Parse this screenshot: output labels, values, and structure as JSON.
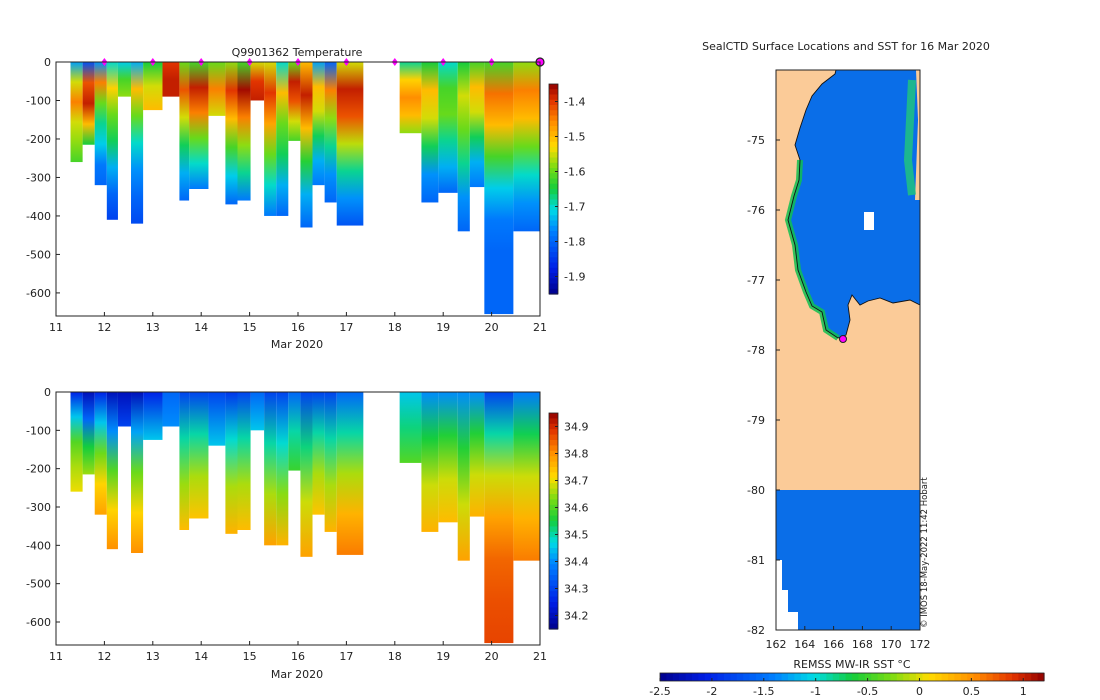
{
  "panel_top": {
    "title": "Q9901362  Temperature",
    "xlabel": "Mar 2020",
    "xticks": [
      "11",
      "12",
      "13",
      "14",
      "15",
      "16",
      "17",
      "18",
      "19",
      "20",
      "21"
    ],
    "yticks": [
      "0",
      "-100",
      "-200",
      "-300",
      "-400",
      "-500",
      "-600"
    ],
    "colorbar_ticks": [
      "-1.4",
      "-1.5",
      "-1.6",
      "-1.7",
      "-1.8",
      "-1.9"
    ]
  },
  "panel_bottom": {
    "title": "",
    "xlabel": "Mar 2020",
    "xticks": [
      "11",
      "12",
      "13",
      "14",
      "15",
      "16",
      "17",
      "18",
      "19",
      "20",
      "21"
    ],
    "yticks": [
      "0",
      "-100",
      "-200",
      "-300",
      "-400",
      "-500",
      "-600"
    ],
    "colorbar_ticks": [
      "34.9",
      "34.8",
      "34.7",
      "34.6",
      "34.5",
      "34.4",
      "34.3",
      "34.2"
    ]
  },
  "map": {
    "title": "SealCTD Surface Locations and SST for 16 Mar 2020",
    "xticks": [
      "162",
      "164",
      "166",
      "168",
      "170",
      "172"
    ],
    "yticks": [
      "-75",
      "-76",
      "-77",
      "-78",
      "-79",
      "-80",
      "-81",
      "-82"
    ],
    "colorbar_label": "REMSS MW-IR SST °C",
    "colorbar_ticks": [
      "-2.5",
      "-2",
      "-1.5",
      "-1",
      "-0.5",
      "0",
      "0.5",
      "1"
    ],
    "credit": "© IMOS 18-May-2022 11:42 Hobart"
  },
  "colors": {
    "ocean": "#0a6ee8",
    "land": "#fbcb98",
    "marker": "#ff00ff"
  },
  "chart_data": [
    {
      "type": "heatmap",
      "title": "Q9901362  Temperature",
      "xlabel": "Mar 2020",
      "ylabel": "",
      "xlim": [
        11,
        21
      ],
      "ylim": [
        -660,
        0
      ],
      "clim": [
        -1.95,
        -1.35
      ],
      "surface_markers_x": [
        12,
        13,
        14,
        15,
        16,
        17,
        18,
        19,
        20,
        21
      ],
      "profiles": [
        {
          "x0": 11.3,
          "x1": 11.55,
          "depth": -260,
          "temps": [
            -1.75,
            -1.55,
            -1.45,
            -1.55,
            -1.58,
            -1.62
          ]
        },
        {
          "x0": 11.55,
          "x1": 11.8,
          "depth": -215,
          "temps": [
            -1.82,
            -1.42,
            -1.38,
            -1.5,
            -1.65
          ]
        },
        {
          "x0": 11.8,
          "x1": 12.05,
          "depth": -320,
          "temps": [
            -1.76,
            -1.45,
            -1.6,
            -1.68,
            -1.72,
            -1.78,
            -1.8
          ]
        },
        {
          "x0": 12.05,
          "x1": 12.28,
          "depth": -410,
          "temps": [
            -1.7,
            -1.52,
            -1.6,
            -1.66,
            -1.74,
            -1.8,
            -1.84
          ]
        },
        {
          "x0": 12.28,
          "x1": 12.55,
          "depth": -90,
          "temps": [
            -1.72,
            -1.62,
            -1.58
          ]
        },
        {
          "x0": 12.55,
          "x1": 12.8,
          "depth": -420,
          "temps": [
            -1.74,
            -1.5,
            -1.6,
            -1.7,
            -1.76,
            -1.8,
            -1.83
          ]
        },
        {
          "x0": 12.8,
          "x1": 13.2,
          "depth": -125,
          "temps": [
            -1.65,
            -1.55,
            -1.5
          ]
        },
        {
          "x0": 13.2,
          "x1": 13.55,
          "depth": -90,
          "temps": [
            -1.4,
            -1.38,
            -1.38
          ]
        },
        {
          "x0": 13.55,
          "x1": 13.75,
          "depth": -360,
          "temps": [
            -1.6,
            -1.42,
            -1.55,
            -1.66,
            -1.74,
            -1.8
          ]
        },
        {
          "x0": 13.75,
          "x1": 14.15,
          "depth": -330,
          "temps": [
            -1.62,
            -1.38,
            -1.45,
            -1.6,
            -1.7,
            -1.78
          ]
        },
        {
          "x0": 14.15,
          "x1": 14.5,
          "depth": -140,
          "temps": [
            -1.6,
            -1.45,
            -1.55
          ]
        },
        {
          "x0": 14.5,
          "x1": 14.75,
          "depth": -370,
          "temps": [
            -1.58,
            -1.4,
            -1.5,
            -1.62,
            -1.72,
            -1.8
          ]
        },
        {
          "x0": 14.75,
          "x1": 15.02,
          "depth": -360,
          "temps": [
            -1.62,
            -1.36,
            -1.45,
            -1.58,
            -1.68,
            -1.78
          ]
        },
        {
          "x0": 15.02,
          "x1": 15.3,
          "depth": -100,
          "temps": [
            -1.55,
            -1.4,
            -1.38
          ]
        },
        {
          "x0": 15.3,
          "x1": 15.55,
          "depth": -400,
          "temps": [
            -1.55,
            -1.4,
            -1.48,
            -1.6,
            -1.7,
            -1.78
          ]
        },
        {
          "x0": 15.55,
          "x1": 15.8,
          "depth": -400,
          "temps": [
            -1.7,
            -1.5,
            -1.6,
            -1.66,
            -1.74,
            -1.8
          ]
        },
        {
          "x0": 15.8,
          "x1": 16.05,
          "depth": -205,
          "temps": [
            -1.6,
            -1.38,
            -1.42,
            -1.55,
            -1.62
          ]
        },
        {
          "x0": 16.05,
          "x1": 16.3,
          "depth": -430,
          "temps": [
            -1.5,
            -1.38,
            -1.5,
            -1.64,
            -1.74,
            -1.8
          ]
        },
        {
          "x0": 16.3,
          "x1": 16.55,
          "depth": -320,
          "temps": [
            -1.75,
            -1.5,
            -1.55,
            -1.66,
            -1.74,
            -1.78
          ]
        },
        {
          "x0": 16.55,
          "x1": 16.8,
          "depth": -365,
          "temps": [
            -1.8,
            -1.45,
            -1.58,
            -1.68,
            -1.76,
            -1.8
          ]
        },
        {
          "x0": 16.8,
          "x1": 17.35,
          "depth": -425,
          "temps": [
            -1.55,
            -1.38,
            -1.42,
            -1.56,
            -1.68,
            -1.76,
            -1.82
          ]
        },
        {
          "x0": 18.1,
          "x1": 18.55,
          "depth": -185,
          "temps": [
            -1.68,
            -1.52,
            -1.46,
            -1.5,
            -1.58
          ]
        },
        {
          "x0": 18.55,
          "x1": 18.9,
          "depth": -365,
          "temps": [
            -1.65,
            -1.5,
            -1.55,
            -1.66,
            -1.76,
            -1.8
          ]
        },
        {
          "x0": 18.9,
          "x1": 19.3,
          "depth": -340,
          "temps": [
            -1.7,
            -1.62,
            -1.6,
            -1.68,
            -1.74,
            -1.8
          ]
        },
        {
          "x0": 19.3,
          "x1": 19.55,
          "depth": -440,
          "temps": [
            -1.65,
            -1.55,
            -1.6,
            -1.68,
            -1.76,
            -1.8
          ]
        },
        {
          "x0": 19.55,
          "x1": 19.85,
          "depth": -325,
          "temps": [
            -1.62,
            -1.5,
            -1.55,
            -1.66,
            -1.74,
            -1.78
          ]
        },
        {
          "x0": 19.85,
          "x1": 20.45,
          "depth": -655,
          "temps": [
            -1.62,
            -1.44,
            -1.5,
            -1.62,
            -1.72,
            -1.78,
            -1.8,
            -1.8,
            -1.8
          ]
        },
        {
          "x0": 20.45,
          "x1": 21.0,
          "depth": -440,
          "temps": [
            -1.58,
            -1.45,
            -1.5,
            -1.6,
            -1.7,
            -1.76,
            -1.8
          ]
        }
      ]
    },
    {
      "type": "heatmap",
      "title": "",
      "xlabel": "Mar 2020",
      "ylabel": "",
      "xlim": [
        11,
        21
      ],
      "ylim": [
        -660,
        0
      ],
      "clim": [
        34.15,
        34.95
      ],
      "colorbar_ticks": [
        34.2,
        34.3,
        34.4,
        34.5,
        34.6,
        34.7,
        34.8,
        34.9
      ],
      "profiles": [
        {
          "x0": 11.3,
          "x1": 11.55,
          "depth": -260,
          "sals": [
            34.25,
            34.45,
            34.6,
            34.66,
            34.7
          ]
        },
        {
          "x0": 11.55,
          "x1": 11.8,
          "depth": -215,
          "sals": [
            34.2,
            34.35,
            34.55,
            34.65
          ]
        },
        {
          "x0": 11.8,
          "x1": 12.05,
          "depth": -320,
          "sals": [
            34.25,
            34.45,
            34.62,
            34.72,
            34.78
          ]
        },
        {
          "x0": 12.05,
          "x1": 12.28,
          "depth": -410,
          "sals": [
            34.2,
            34.4,
            34.6,
            34.72,
            34.8
          ]
        },
        {
          "x0": 12.28,
          "x1": 12.55,
          "depth": -90,
          "sals": [
            34.2,
            34.3
          ]
        },
        {
          "x0": 12.55,
          "x1": 12.8,
          "depth": -420,
          "sals": [
            34.2,
            34.42,
            34.62,
            34.72,
            34.8
          ]
        },
        {
          "x0": 12.8,
          "x1": 13.2,
          "depth": -125,
          "sals": [
            34.25,
            34.45
          ]
        },
        {
          "x0": 13.2,
          "x1": 13.55,
          "depth": -90,
          "sals": [
            34.35,
            34.4
          ]
        },
        {
          "x0": 13.55,
          "x1": 13.75,
          "depth": -360,
          "sals": [
            34.3,
            34.5,
            34.65,
            34.75
          ]
        },
        {
          "x0": 13.75,
          "x1": 14.15,
          "depth": -330,
          "sals": [
            34.3,
            34.5,
            34.66,
            34.74
          ]
        },
        {
          "x0": 14.15,
          "x1": 14.5,
          "depth": -140,
          "sals": [
            34.3,
            34.45
          ]
        },
        {
          "x0": 14.5,
          "x1": 14.75,
          "depth": -370,
          "sals": [
            34.28,
            34.48,
            34.66,
            34.76
          ]
        },
        {
          "x0": 14.75,
          "x1": 15.02,
          "depth": -360,
          "sals": [
            34.3,
            34.5,
            34.66,
            34.75
          ]
        },
        {
          "x0": 15.02,
          "x1": 15.3,
          "depth": -100,
          "sals": [
            34.35,
            34.45
          ]
        },
        {
          "x0": 15.3,
          "x1": 15.55,
          "depth": -400,
          "sals": [
            34.3,
            34.5,
            34.66,
            34.78
          ]
        },
        {
          "x0": 15.55,
          "x1": 15.8,
          "depth": -400,
          "sals": [
            34.3,
            34.48,
            34.64,
            34.76
          ]
        },
        {
          "x0": 15.8,
          "x1": 16.05,
          "depth": -205,
          "sals": [
            34.35,
            34.5,
            34.58
          ]
        },
        {
          "x0": 16.05,
          "x1": 16.3,
          "depth": -430,
          "sals": [
            34.3,
            34.52,
            34.68,
            34.78
          ]
        },
        {
          "x0": 16.3,
          "x1": 16.55,
          "depth": -320,
          "sals": [
            34.3,
            34.5,
            34.66,
            34.74
          ]
        },
        {
          "x0": 16.55,
          "x1": 16.8,
          "depth": -365,
          "sals": [
            34.3,
            34.5,
            34.66,
            34.76
          ]
        },
        {
          "x0": 16.8,
          "x1": 17.35,
          "depth": -425,
          "sals": [
            34.35,
            34.5,
            34.66,
            34.76,
            34.82
          ]
        },
        {
          "x0": 18.1,
          "x1": 18.55,
          "depth": -185,
          "sals": [
            34.45,
            34.52,
            34.6
          ]
        },
        {
          "x0": 18.55,
          "x1": 18.9,
          "depth": -365,
          "sals": [
            34.4,
            34.55,
            34.68,
            34.76
          ]
        },
        {
          "x0": 18.9,
          "x1": 19.3,
          "depth": -340,
          "sals": [
            34.4,
            34.56,
            34.68,
            34.75
          ]
        },
        {
          "x0": 19.3,
          "x1": 19.55,
          "depth": -440,
          "sals": [
            34.4,
            34.56,
            34.68,
            34.78
          ]
        },
        {
          "x0": 19.55,
          "x1": 19.85,
          "depth": -325,
          "sals": [
            34.4,
            34.56,
            34.68,
            34.76
          ]
        },
        {
          "x0": 19.85,
          "x1": 20.45,
          "depth": -655,
          "sals": [
            34.3,
            34.5,
            34.68,
            34.78,
            34.84,
            34.86,
            34.87
          ]
        },
        {
          "x0": 20.45,
          "x1": 21.0,
          "depth": -440,
          "sals": [
            34.38,
            34.54,
            34.68,
            34.76,
            34.82
          ]
        }
      ]
    },
    {
      "type": "heatmap",
      "title": "SealCTD Surface Locations and SST for 16 Mar 2020",
      "xlabel": "",
      "ylabel": "",
      "xlim": [
        162,
        172
      ],
      "ylim": [
        -82,
        -74
      ],
      "clim": [
        -2.5,
        1.2
      ],
      "colorbar_label": "REMSS MW-IR SST °C",
      "location_marker": {
        "lon": 166.8,
        "lat": -77.85
      },
      "sst_missing_south_of_lat": -80,
      "ocean_sst": -1.9
    }
  ]
}
